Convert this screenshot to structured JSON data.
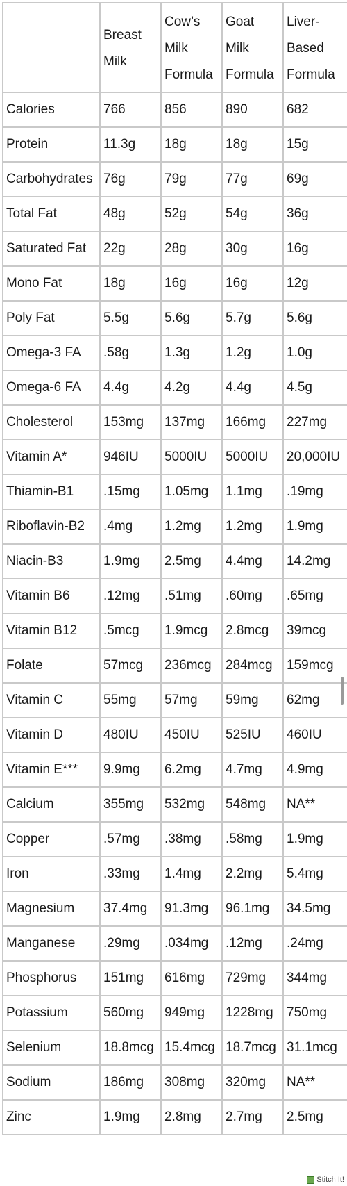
{
  "table": {
    "headers": [
      "",
      "Breast Milk",
      "Cow’s Milk Formula",
      "Goat Milk Formula",
      "Liver-Based Formula"
    ],
    "rows": [
      [
        "Calories",
        "766",
        "856",
        "890",
        "682"
      ],
      [
        "Protein",
        "11.3g",
        "18g",
        "18g",
        "15g"
      ],
      [
        "Carbohydrates",
        "76g",
        "79g",
        "77g",
        "69g"
      ],
      [
        "Total Fat",
        "48g",
        "52g",
        "54g",
        "36g"
      ],
      [
        "Saturated Fat",
        "22g",
        "28g",
        "30g",
        "16g"
      ],
      [
        "Mono Fat",
        "18g",
        "16g",
        "16g",
        "12g"
      ],
      [
        "Poly Fat",
        "5.5g",
        "5.6g",
        "5.7g",
        "5.6g"
      ],
      [
        "Omega-3 FA",
        ".58g",
        "1.3g",
        "1.2g",
        "1.0g"
      ],
      [
        "Omega-6 FA",
        "4.4g",
        "4.2g",
        "4.4g",
        "4.5g"
      ],
      [
        "Cholesterol",
        "153mg",
        "137mg",
        "166mg",
        "227mg"
      ],
      [
        "Vitamin A*",
        "946IU",
        "5000IU",
        "5000IU",
        "20,000IU"
      ],
      [
        "Thiamin-B1",
        ".15mg",
        "1.05mg",
        "1.1mg",
        ".19mg"
      ],
      [
        "Riboflavin-B2",
        ".4mg",
        "1.2mg",
        "1.2mg",
        "1.9mg"
      ],
      [
        "Niacin-B3",
        "1.9mg",
        "2.5mg",
        "4.4mg",
        "14.2mg"
      ],
      [
        "Vitamin B6",
        ".12mg",
        ".51mg",
        ".60mg",
        ".65mg"
      ],
      [
        "Vitamin B12",
        ".5mcg",
        "1.9mcg",
        "2.8mcg",
        "39mcg"
      ],
      [
        "Folate",
        "57mcg",
        "236mcg",
        "284mcg",
        "159mcg"
      ],
      [
        "Vitamin C",
        "55mg",
        "57mg",
        "59mg",
        "62mg"
      ],
      [
        "Vitamin D",
        "480IU",
        "450IU",
        "525IU",
        "460IU"
      ],
      [
        "Vitamin E***",
        "9.9mg",
        "6.2mg",
        "4.7mg",
        "4.9mg"
      ],
      [
        "Calcium",
        "355mg",
        "532mg",
        "548mg",
        "NA**"
      ],
      [
        "Copper",
        ".57mg",
        ".38mg",
        ".58mg",
        "1.9mg"
      ],
      [
        "Iron",
        ".33mg",
        "1.4mg",
        "2.2mg",
        "5.4mg"
      ],
      [
        "Magnesium",
        "37.4mg",
        "91.3mg",
        "96.1mg",
        "34.5mg"
      ],
      [
        "Manganese",
        ".29mg",
        ".034mg",
        ".12mg",
        ".24mg"
      ],
      [
        "Phosphorus",
        "151mg",
        "616mg",
        "729mg",
        "344mg"
      ],
      [
        "Potassium",
        "560mg",
        "949mg",
        "1228mg",
        "750mg"
      ],
      [
        "Selenium",
        "18.8mcg",
        "15.4mcg",
        "18.7mcg",
        "31.1mcg"
      ],
      [
        "Sodium",
        "186mg",
        "308mg",
        "320mg",
        "NA**"
      ],
      [
        "Zinc",
        "1.9mg",
        "2.8mg",
        "2.7mg",
        "2.5mg"
      ]
    ]
  },
  "badge": {
    "label": "Stitch It!",
    "icon": "stitch-icon"
  },
  "colors": {
    "border": "#c9c9c9",
    "text": "#1a1a1a"
  }
}
